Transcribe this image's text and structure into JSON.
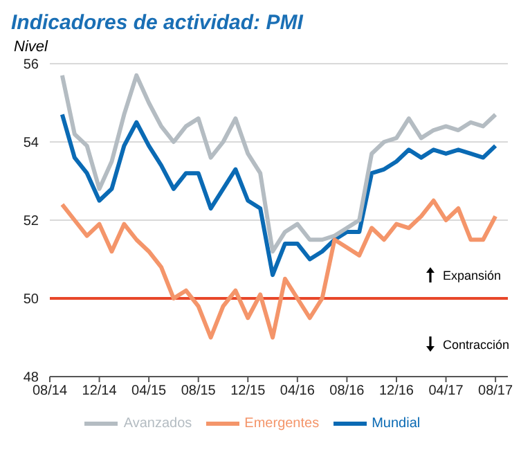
{
  "chart_data": {
    "type": "line",
    "title": "Indicadores de actividad: PMI",
    "ylabel": "Nivel",
    "x": [
      "2014-09",
      "2014-10",
      "2014-11",
      "2014-12",
      "2015-01",
      "2015-02",
      "2015-03",
      "2015-04",
      "2015-05",
      "2015-06",
      "2015-07",
      "2015-08",
      "2015-09",
      "2015-10",
      "2015-11",
      "2015-12",
      "2016-01",
      "2016-02",
      "2016-03",
      "2016-04",
      "2016-05",
      "2016-06",
      "2016-07",
      "2016-08",
      "2016-09",
      "2016-10",
      "2016-11",
      "2016-12",
      "2017-01",
      "2017-02",
      "2017-03",
      "2017-04",
      "2017-05",
      "2017-06",
      "2017-07",
      "2017-08"
    ],
    "series": [
      {
        "name": "Mundial",
        "color": "#0a6ab4",
        "values": [
          54.7,
          53.6,
          53.2,
          52.5,
          52.8,
          53.9,
          54.5,
          53.9,
          53.4,
          52.8,
          53.2,
          53.2,
          52.3,
          52.8,
          53.3,
          52.5,
          52.3,
          50.6,
          51.4,
          51.4,
          51.0,
          51.2,
          51.5,
          51.7,
          51.7,
          53.2,
          53.3,
          53.5,
          53.8,
          53.6,
          53.8,
          53.7,
          53.8,
          53.7,
          53.6,
          53.9
        ]
      },
      {
        "name": "Avanzados",
        "color": "#b4bcc2",
        "values": [
          55.7,
          54.2,
          53.9,
          52.8,
          53.5,
          54.7,
          55.7,
          55.0,
          54.4,
          54.0,
          54.4,
          54.6,
          53.6,
          54.0,
          54.6,
          53.7,
          53.2,
          51.2,
          51.7,
          51.9,
          51.5,
          51.5,
          51.6,
          51.8,
          52.0,
          53.7,
          54.0,
          54.1,
          54.6,
          54.1,
          54.3,
          54.4,
          54.3,
          54.5,
          54.4,
          54.7
        ]
      },
      {
        "name": "Emergentes",
        "color": "#f4956a",
        "values": [
          52.4,
          52.0,
          51.6,
          51.9,
          51.2,
          51.9,
          51.5,
          51.2,
          50.8,
          50.0,
          50.2,
          49.8,
          49.0,
          49.8,
          50.2,
          49.5,
          50.1,
          49.0,
          50.5,
          50.0,
          49.5,
          50.0,
          51.5,
          51.3,
          51.1,
          51.8,
          51.5,
          51.9,
          51.8,
          52.1,
          52.5,
          52.0,
          52.3,
          51.5,
          51.5,
          52.1
        ]
      }
    ],
    "xlim": [
      "2014-08",
      "2017-09"
    ],
    "xticks": [
      {
        "value": "2014-08",
        "label": "08/14"
      },
      {
        "value": "2014-12",
        "label": "12/14"
      },
      {
        "value": "2015-04",
        "label": "04/15"
      },
      {
        "value": "2015-08",
        "label": "08/15"
      },
      {
        "value": "2015-12",
        "label": "12/15"
      },
      {
        "value": "2016-04",
        "label": "04/16"
      },
      {
        "value": "2016-08",
        "label": "08/16"
      },
      {
        "value": "2016-12",
        "label": "12/16"
      },
      {
        "value": "2017-04",
        "label": "04/17"
      },
      {
        "value": "2017-08",
        "label": "08/17"
      }
    ],
    "ylim": [
      48,
      56
    ],
    "yticks": [
      48,
      50,
      52,
      54,
      56
    ],
    "grid": "y",
    "legend": "bottom",
    "marker": "none",
    "line_style": "solid",
    "ref_lines": [
      {
        "axis": "y",
        "value": 50,
        "color": "#e8472a"
      }
    ],
    "annotations": [
      "Expansión",
      "Contracción"
    ]
  }
}
